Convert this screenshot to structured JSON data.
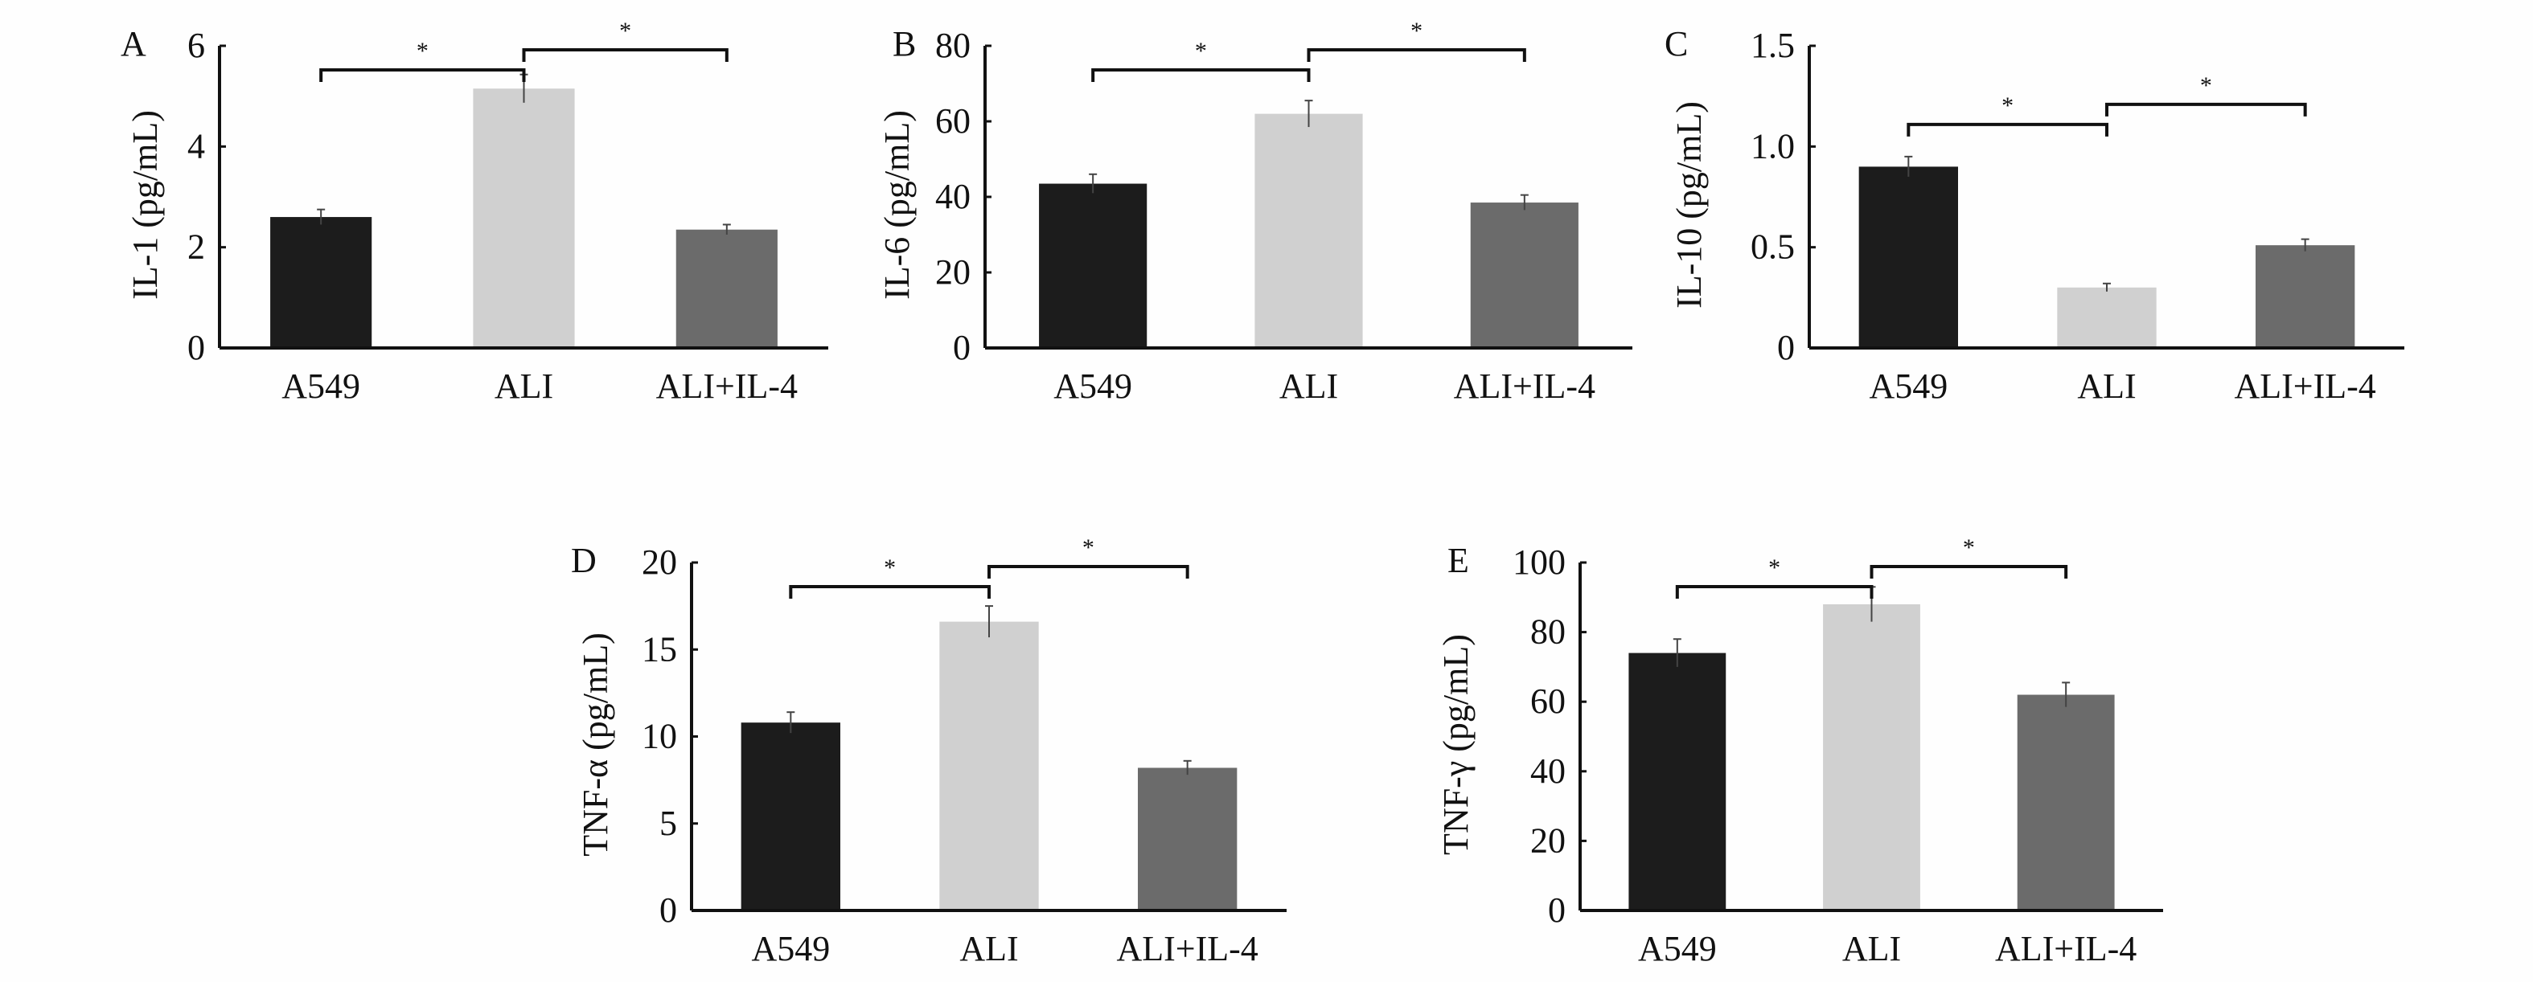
{
  "chart_data": [
    {
      "type": "bar",
      "panel_label": "A",
      "ylabel": "IL-1 (pg/mL)",
      "categories": [
        "A549",
        "ALI",
        "ALI+IL-4"
      ],
      "values": [
        2.6,
        5.15,
        2.35
      ],
      "errors": [
        0.15,
        0.28,
        0.1
      ],
      "ylim": [
        0,
        6
      ],
      "yticks": [
        0,
        2,
        4,
        6
      ],
      "ytick_labels": [
        "0",
        "2",
        "4",
        "6"
      ],
      "significance": [
        "*",
        "*"
      ],
      "grid": false
    },
    {
      "type": "bar",
      "panel_label": "B",
      "ylabel": "IL-6 (pg/mL)",
      "categories": [
        "A549",
        "ALI",
        "ALI+IL-4"
      ],
      "values": [
        43.5,
        62,
        38.5
      ],
      "errors": [
        2.5,
        3.5,
        2
      ],
      "ylim": [
        0,
        80
      ],
      "yticks": [
        0,
        20,
        40,
        60,
        80
      ],
      "ytick_labels": [
        "0",
        "20",
        "40",
        "60",
        "80"
      ],
      "significance": [
        "*",
        "*"
      ],
      "grid": false
    },
    {
      "type": "bar",
      "panel_label": "C",
      "ylabel": "IL-10 (pg/mL)",
      "categories": [
        "A549",
        "ALI",
        "ALI+IL-4"
      ],
      "values": [
        0.9,
        0.3,
        0.51
      ],
      "errors": [
        0.05,
        0.02,
        0.03
      ],
      "ylim": [
        0,
        1.5
      ],
      "yticks": [
        0,
        0.5,
        1.0,
        1.5
      ],
      "ytick_labels": [
        "0",
        "0.5",
        "1.0",
        "1.5"
      ],
      "significance": [
        "*",
        "*"
      ],
      "grid": false
    },
    {
      "type": "bar",
      "panel_label": "D",
      "ylabel": "TNF-α (pg/mL)",
      "categories": [
        "A549",
        "ALI",
        "ALI+IL-4"
      ],
      "values": [
        10.8,
        16.6,
        8.2
      ],
      "errors": [
        0.6,
        0.9,
        0.4
      ],
      "ylim": [
        0,
        20
      ],
      "yticks": [
        0,
        5,
        10,
        15,
        20
      ],
      "ytick_labels": [
        "0",
        "5",
        "10",
        "15",
        "20"
      ],
      "significance": [
        "*",
        "*"
      ],
      "grid": false
    },
    {
      "type": "bar",
      "panel_label": "E",
      "ylabel": "TNF-γ (pg/mL)",
      "categories": [
        "A549",
        "ALI",
        "ALI+IL-4"
      ],
      "values": [
        74,
        88,
        62
      ],
      "errors": [
        4,
        5,
        3.5
      ],
      "ylim": [
        0,
        100
      ],
      "yticks": [
        0,
        20,
        40,
        60,
        80,
        100
      ],
      "ytick_labels": [
        "0",
        "20",
        "40",
        "60",
        "80",
        "100"
      ],
      "significance": [
        "*",
        "*"
      ],
      "grid": false
    }
  ],
  "colors": {
    "A549": "#1c1c1c",
    "ALI": "#d0d0d0",
    "ALI+IL-4": "#6b6b6b",
    "axis": "#111111"
  }
}
